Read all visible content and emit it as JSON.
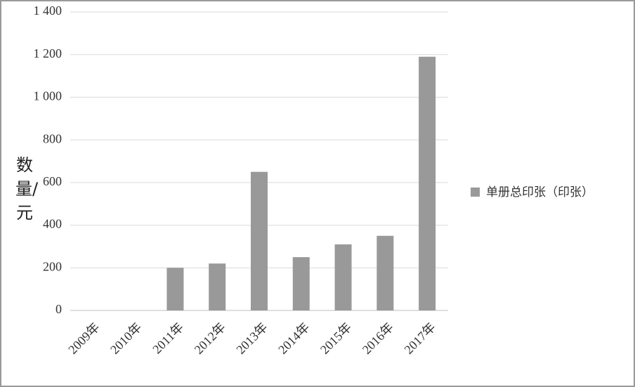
{
  "chart_data": {
    "type": "bar",
    "y_label": "数量/元",
    "categories": [
      "2009年",
      "2010年",
      "2011年",
      "2012年",
      "2013年",
      "2014年",
      "2015年",
      "2016年",
      "2017年"
    ],
    "series": [
      {
        "name": "单册总印张（印张）",
        "color": "#999999",
        "values": [
          0,
          0,
          200,
          220,
          650,
          250,
          310,
          350,
          1190
        ]
      }
    ],
    "ylim": [
      0,
      1400
    ],
    "yticks": [
      0,
      200,
      400,
      600,
      800,
      {
        "value": 1000,
        "label": "1 000"
      },
      {
        "value": 1200,
        "label": "1 200"
      },
      {
        "value": 1400,
        "label": "1 400"
      }
    ],
    "grid": true,
    "legend": "right"
  }
}
